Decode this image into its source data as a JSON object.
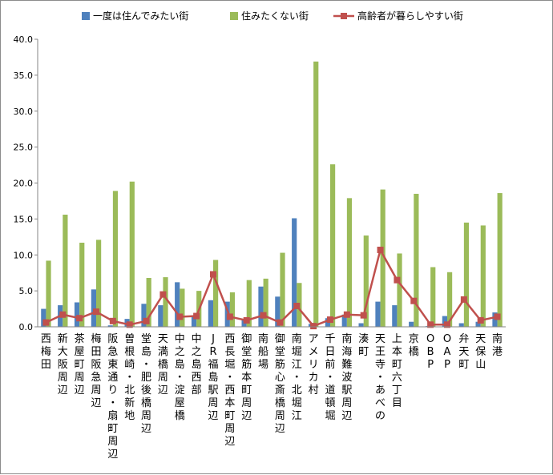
{
  "chart_data": {
    "type": "bar",
    "title": "",
    "xlabel": "",
    "ylabel": "",
    "ylim": [
      0,
      40
    ],
    "yticks": [
      "0.0",
      "5.0",
      "10.0",
      "15.0",
      "20.0",
      "25.0",
      "30.0",
      "35.0",
      "40.0"
    ],
    "grid": false,
    "legend_position": "top",
    "categories": [
      "西梅田",
      "新大阪周辺",
      "茶屋町周辺",
      "梅田阪急周辺",
      "阪急東通り・扇町周辺",
      "曽根崎・北新地",
      "堂島・肥後橋周辺",
      "天満橋周辺",
      "中之島・淀屋橋",
      "中之島西部",
      "JR福島駅周辺",
      "西長堀・西本町周辺",
      "御堂筋本町周辺",
      "南船場",
      "御堂筋心斎橋周辺",
      "南堀江・北堀江",
      "アメリカ村",
      "千日前・道頓堀",
      "南海難波駅周辺",
      "湊町",
      "天王寺・あべの",
      "上本町六丁目",
      "京橋",
      "OBP",
      "OAP",
      "弁天町",
      "天保山",
      "南港"
    ],
    "series": [
      {
        "name": "一度は住んでみたい街",
        "type": "bar",
        "color": "#4f81bd",
        "values": [
          2.5,
          3.0,
          3.4,
          5.2,
          0.2,
          1.1,
          3.2,
          3.0,
          6.2,
          1.6,
          3.7,
          3.5,
          1.0,
          5.6,
          4.2,
          15.1,
          0.4,
          1.2,
          1.7,
          0.5,
          3.5,
          3.0,
          0.7,
          0.1,
          1.5,
          0.5,
          0.7,
          2.0
        ]
      },
      {
        "name": "住みたくない街",
        "type": "bar",
        "color": "#9bbb59",
        "values": [
          9.2,
          15.6,
          11.7,
          12.1,
          18.9,
          20.2,
          6.8,
          6.9,
          5.3,
          5.0,
          9.3,
          4.8,
          6.5,
          6.7,
          10.3,
          6.1,
          36.9,
          22.6,
          17.9,
          12.7,
          19.1,
          10.2,
          18.5,
          8.3,
          7.6,
          14.5,
          14.1,
          18.6
        ]
      },
      {
        "name": "高齢者が暮らしやすい街",
        "type": "line",
        "color": "#c0504d",
        "values": [
          0.6,
          1.7,
          1.2,
          2.1,
          0.8,
          0.3,
          0.8,
          4.5,
          1.4,
          1.5,
          7.3,
          1.4,
          0.9,
          1.6,
          0.6,
          2.9,
          0.1,
          1.0,
          1.7,
          1.6,
          10.7,
          6.5,
          3.6,
          0.3,
          0.3,
          3.8,
          0.9,
          1.4
        ]
      }
    ]
  }
}
